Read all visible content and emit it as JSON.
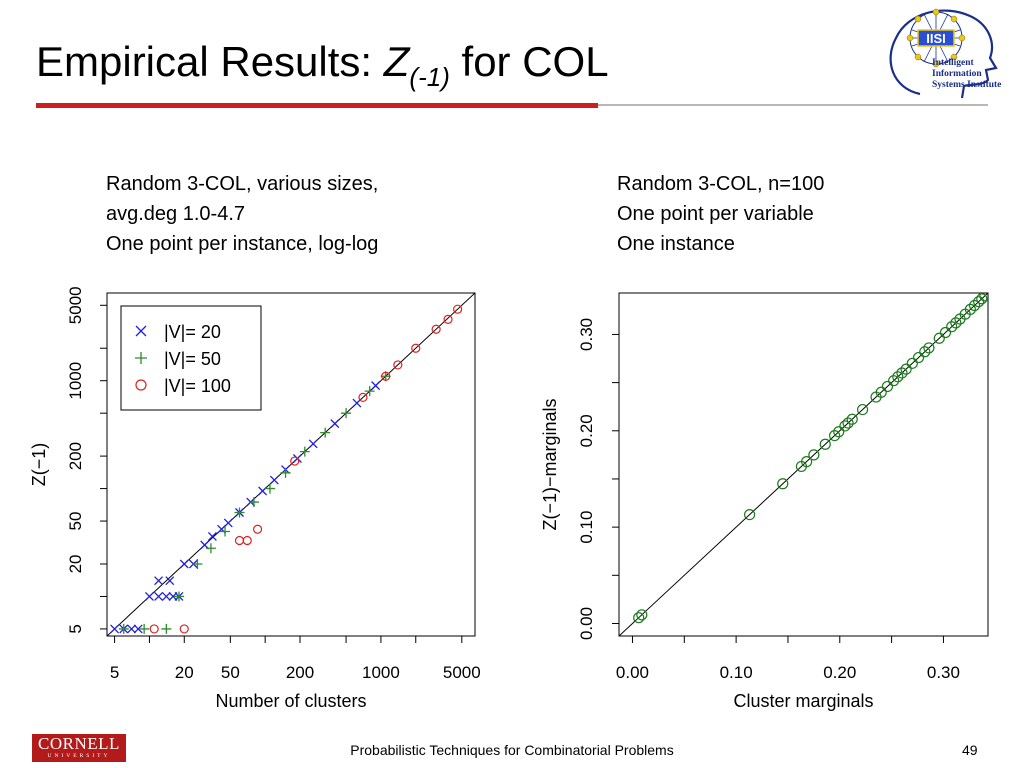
{
  "slide": {
    "title_prefix": "Empirical Results: ",
    "title_z": "Z",
    "title_sub": "(-1)",
    "title_suffix": " for COL",
    "logo_text_line1": "Intelligent Information",
    "logo_text_line2": "Systems Institute",
    "logo_mark": "IISI",
    "footer": "Probabilistic Techniques for Combinatorial Problems",
    "page_number": "49",
    "cornell_name": "CORNELL",
    "cornell_univ": "UNIVERSITY",
    "accent_color": "#cc1f1f"
  },
  "captions": {
    "left": [
      "Random 3-COL, various sizes,",
      "avg.deg 1.0-4.7",
      "One point per instance, log-log"
    ],
    "right": [
      "Random 3-COL, n=100",
      "One point per variable",
      "One instance"
    ]
  },
  "chart_data": [
    {
      "type": "scatter",
      "title": "",
      "xlabel": "Number of clusters",
      "ylabel": "Z(−1)",
      "scale": "log-log",
      "xlim": [
        4.3,
        6500
      ],
      "ylim": [
        4.3,
        6500
      ],
      "x_ticks": [
        5,
        20,
        50,
        200,
        1000,
        5000
      ],
      "y_ticks": [
        5,
        20,
        50,
        200,
        1000,
        5000
      ],
      "diagonal": true,
      "grid": false,
      "legend_position": "top-left",
      "series": [
        {
          "name": "|V|= 20",
          "marker": "x",
          "color": "#1f1fdd",
          "points": [
            [
              5,
              5
            ],
            [
              6,
              5
            ],
            [
              7,
              5
            ],
            [
              8,
              5
            ],
            [
              10,
              10
            ],
            [
              12,
              10
            ],
            [
              14,
              10
            ],
            [
              16,
              10
            ],
            [
              18,
              10
            ],
            [
              12,
              14
            ],
            [
              15,
              14
            ],
            [
              20,
              20
            ],
            [
              24,
              20
            ],
            [
              30,
              30
            ],
            [
              35,
              36
            ],
            [
              42,
              42
            ],
            [
              48,
              48
            ],
            [
              60,
              60
            ],
            [
              75,
              75
            ],
            [
              95,
              95
            ],
            [
              120,
              120
            ],
            [
              150,
              150
            ],
            [
              190,
              190
            ],
            [
              260,
              260
            ],
            [
              400,
              400
            ],
            [
              620,
              620
            ],
            [
              900,
              900
            ]
          ]
        },
        {
          "name": "|V|= 50",
          "marker": "+",
          "color": "#2d8c2d",
          "points": [
            [
              6,
              5
            ],
            [
              9,
              5
            ],
            [
              14,
              5
            ],
            [
              18,
              10
            ],
            [
              26,
              20
            ],
            [
              34,
              28
            ],
            [
              45,
              40
            ],
            [
              60,
              60
            ],
            [
              80,
              75
            ],
            [
              110,
              100
            ],
            [
              150,
              140
            ],
            [
              220,
              220
            ],
            [
              330,
              330
            ],
            [
              500,
              500
            ],
            [
              800,
              800
            ],
            [
              1100,
              1100
            ]
          ]
        },
        {
          "name": "|V|= 100",
          "marker": "o",
          "color": "#e02020",
          "points": [
            [
              11,
              5
            ],
            [
              20,
              5
            ],
            [
              60,
              33
            ],
            [
              70,
              33
            ],
            [
              86,
              42
            ],
            [
              180,
              180
            ],
            [
              700,
              700
            ],
            [
              1100,
              1100
            ],
            [
              1400,
              1400
            ],
            [
              2000,
              2000
            ],
            [
              3000,
              3000
            ],
            [
              3800,
              3700
            ],
            [
              4600,
              4600
            ]
          ]
        }
      ]
    },
    {
      "type": "scatter",
      "title": "",
      "xlabel": "Cluster marginals",
      "ylabel": "Z(−1)−marginals",
      "xlim": [
        -0.013,
        0.343
      ],
      "ylim": [
        -0.013,
        0.343
      ],
      "x_ticks": [
        0.0,
        0.1,
        0.2,
        0.3
      ],
      "x_tick_labels": [
        "0.00",
        "0.10",
        "0.20",
        "0.30"
      ],
      "y_ticks": [
        0.0,
        0.1,
        0.2,
        0.3
      ],
      "y_tick_labels": [
        "0.00",
        "0.10",
        "0.20",
        "0.30"
      ],
      "diagonal": true,
      "grid": false,
      "series": [
        {
          "name": "",
          "marker": "o",
          "color": "#1e7a1e",
          "points": [
            [
              0.006,
              0.006
            ],
            [
              0.009,
              0.009
            ],
            [
              0.113,
              0.113
            ],
            [
              0.145,
              0.145
            ],
            [
              0.163,
              0.163
            ],
            [
              0.168,
              0.168
            ],
            [
              0.175,
              0.175
            ],
            [
              0.186,
              0.186
            ],
            [
              0.195,
              0.195
            ],
            [
              0.199,
              0.199
            ],
            [
              0.205,
              0.205
            ],
            [
              0.208,
              0.208
            ],
            [
              0.212,
              0.212
            ],
            [
              0.222,
              0.222
            ],
            [
              0.235,
              0.235
            ],
            [
              0.24,
              0.24
            ],
            [
              0.246,
              0.246
            ],
            [
              0.252,
              0.252
            ],
            [
              0.256,
              0.256
            ],
            [
              0.26,
              0.26
            ],
            [
              0.264,
              0.264
            ],
            [
              0.27,
              0.27
            ],
            [
              0.276,
              0.276
            ],
            [
              0.282,
              0.282
            ],
            [
              0.286,
              0.286
            ],
            [
              0.296,
              0.296
            ],
            [
              0.302,
              0.302
            ],
            [
              0.308,
              0.308
            ],
            [
              0.312,
              0.312
            ],
            [
              0.316,
              0.316
            ],
            [
              0.321,
              0.321
            ],
            [
              0.326,
              0.326
            ],
            [
              0.33,
              0.33
            ],
            [
              0.334,
              0.334
            ],
            [
              0.337,
              0.337
            ],
            [
              0.34,
              0.34
            ]
          ]
        }
      ]
    }
  ]
}
